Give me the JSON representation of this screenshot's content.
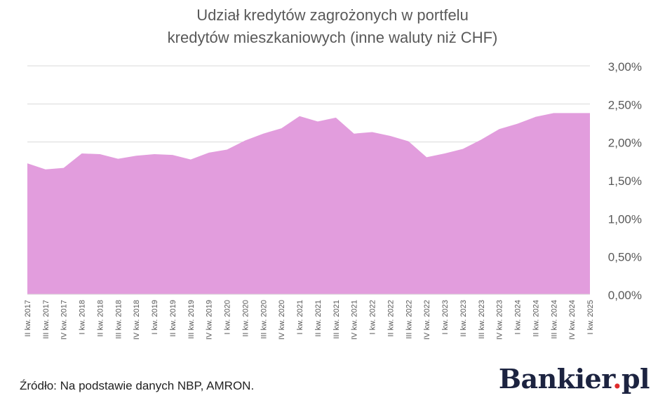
{
  "chart_data": {
    "type": "area",
    "title_lines": [
      "Udział kredytów zagrożonych w portfelu",
      "kredytów mieszkaniowych (inne waluty niż CHF)"
    ],
    "xlabel": "",
    "ylabel": "",
    "ylim": [
      0,
      3
    ],
    "y_ticks": [
      "0,00%",
      "0,50%",
      "1,00%",
      "1,50%",
      "2,00%",
      "2,50%",
      "3,00%"
    ],
    "y_axis_side": "right",
    "grid": true,
    "legend": "none",
    "fill_color": "#e29ddd",
    "grid_color": "#d9d9d9",
    "categories": [
      "II kw. 2017",
      "III kw. 2017",
      "IV kw. 2017",
      "I kw. 2018",
      "II kw. 2018",
      "III kw. 2018",
      "IV kw. 2018",
      "I kw. 2019",
      "II kw. 2019",
      "III kw. 2019",
      "IV kw. 2019",
      "I kw. 2020",
      "II kw. 2020",
      "III kw. 2020",
      "IV kw. 2020",
      "I kw. 2021",
      "II kw. 2021",
      "III kw. 2021",
      "IV kw. 2021",
      "I kw. 2022",
      "II kw. 2022",
      "III kw. 2022",
      "IV kw. 2022",
      "I kw. 2023",
      "II kw. 2023",
      "III kw. 2023",
      "IV kw. 2023",
      "I kw. 2024",
      "II kw. 2024",
      "III kw. 2024",
      "IV kw. 2024",
      "I kw. 2025"
    ],
    "values": [
      1.72,
      1.64,
      1.66,
      1.85,
      1.84,
      1.78,
      1.82,
      1.84,
      1.83,
      1.77,
      1.86,
      1.9,
      2.02,
      2.11,
      2.18,
      2.34,
      2.27,
      2.32,
      2.11,
      2.13,
      2.08,
      2.01,
      1.8,
      1.85,
      1.91,
      2.03,
      2.17,
      2.24,
      2.33,
      2.38,
      2.38,
      2.38
    ]
  },
  "source": "Źródło: Na podstawie danych NBP, AMRON.",
  "brand": {
    "name": "Bankier",
    "dot": ".",
    "tld": "pl"
  }
}
